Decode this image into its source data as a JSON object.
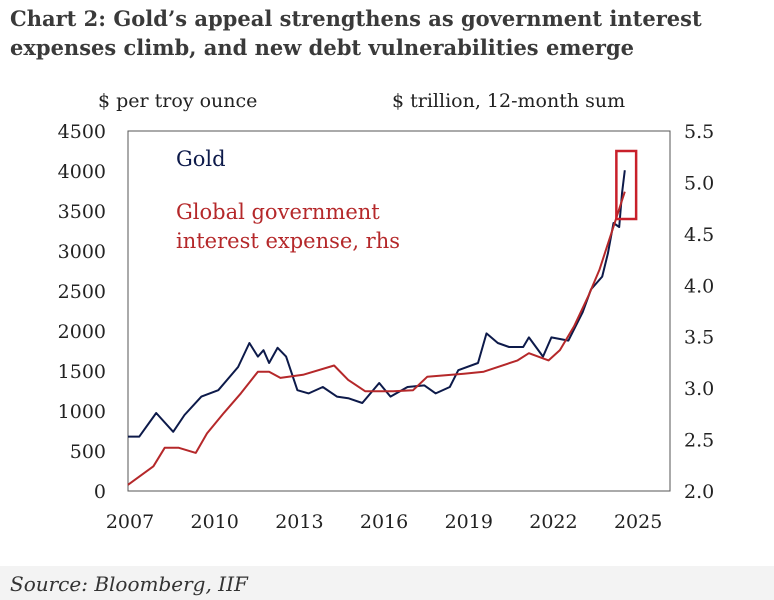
{
  "title": "Chart 2: Gold’s appeal strengthens as government interest expenses climb, and new debt vulnerabilities emerge",
  "source": "Source: Bloomberg, IIF",
  "chart_data": {
    "type": "line",
    "ylabel": "$ per troy ounce",
    "y2label": "$ trillion, 12-month sum",
    "xlim": [
      2007,
      2026.2
    ],
    "ylim": [
      0,
      4500
    ],
    "y2lim": [
      2.0,
      5.5
    ],
    "xticks": [
      "2007",
      "2010",
      "2013",
      "2016",
      "2019",
      "2022",
      "2025"
    ],
    "yticks": [
      "0",
      "500",
      "1000",
      "1500",
      "2000",
      "2500",
      "3000",
      "3500",
      "4000",
      "4500"
    ],
    "y2ticks": [
      "2.0",
      "2.5",
      "3.0",
      "3.5",
      "4.0",
      "4.5",
      "5.0",
      "5.5"
    ],
    "grid": false,
    "legend": "inline-top-left",
    "series": [
      {
        "name": "Gold",
        "axis": "left",
        "color": "#0d1a4a",
        "x": [
          2007.0,
          2007.4,
          2008.0,
          2008.6,
          2009.0,
          2009.6,
          2010.2,
          2010.9,
          2011.3,
          2011.6,
          2011.8,
          2012.0,
          2012.3,
          2012.6,
          2013.0,
          2013.4,
          2013.9,
          2014.4,
          2014.8,
          2015.3,
          2015.9,
          2016.3,
          2016.9,
          2017.5,
          2017.9,
          2018.4,
          2018.7,
          2019.4,
          2019.7,
          2020.1,
          2020.5,
          2021.0,
          2021.2,
          2021.7,
          2022.0,
          2022.6,
          2023.1,
          2023.4,
          2023.8,
          2024.0,
          2024.2,
          2024.4,
          2024.5,
          2024.6
        ],
        "y": [
          680,
          680,
          975,
          740,
          950,
          1180,
          1260,
          1550,
          1850,
          1680,
          1760,
          1600,
          1790,
          1680,
          1260,
          1220,
          1300,
          1180,
          1160,
          1100,
          1350,
          1180,
          1300,
          1320,
          1220,
          1300,
          1510,
          1600,
          1970,
          1850,
          1800,
          1800,
          1920,
          1680,
          1920,
          1880,
          2230,
          2520,
          2680,
          2970,
          3350,
          3300,
          3720,
          4010
        ]
      },
      {
        "name": "Global government interest expense, rhs",
        "axis": "right",
        "color": "#b5282a",
        "x": [
          2007.0,
          2007.9,
          2008.3,
          2008.8,
          2009.4,
          2009.8,
          2010.4,
          2011.0,
          2011.6,
          2012.0,
          2012.4,
          2013.2,
          2014.3,
          2014.8,
          2015.4,
          2016.4,
          2017.1,
          2017.6,
          2018.9,
          2019.6,
          2020.8,
          2021.2,
          2021.9,
          2022.3,
          2022.8,
          2023.3,
          2023.7,
          2024.2,
          2024.6
        ],
        "y": [
          2.06,
          2.24,
          2.42,
          2.42,
          2.37,
          2.56,
          2.76,
          2.95,
          3.16,
          3.16,
          3.1,
          3.13,
          3.22,
          3.08,
          2.97,
          2.97,
          2.98,
          3.11,
          3.14,
          3.16,
          3.27,
          3.34,
          3.27,
          3.37,
          3.6,
          3.89,
          4.15,
          4.57,
          4.91
        ]
      }
    ],
    "annotations": [
      {
        "type": "highlight-box",
        "color": "#c8202a",
        "x_range": [
          2024.3,
          2025.0
        ],
        "y_range": [
          3400,
          4500
        ]
      }
    ]
  }
}
